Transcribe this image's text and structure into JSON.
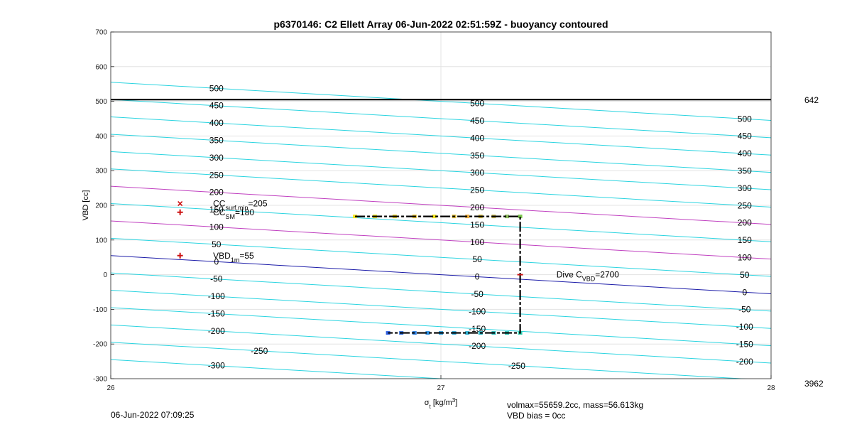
{
  "chart_data": {
    "type": "line",
    "title": "p6370146: C2 Ellett Array 06-Jun-2022 02:51:59Z - buoyancy contoured",
    "xlabel": "σ_t [kg/m^3]",
    "xlabel_main": "σ",
    "xlabel_sub": "t",
    "xlabel_rest": " [kg/m",
    "xlabel_sup": "3",
    "xlabel_end": "]",
    "ylabel": "VBD [cc]",
    "xlim": [
      26,
      28
    ],
    "ylim": [
      -300,
      700
    ],
    "xticks": [
      "26",
      "27",
      "28"
    ],
    "yticks": [
      "-300",
      "-200",
      "-100",
      "0",
      "100",
      "200",
      "300",
      "400",
      "500",
      "600",
      "700"
    ],
    "grid": true,
    "right_labels": {
      "top": "642",
      "bottom": "3962"
    },
    "max_vbd_line": 505,
    "buoyancy_contours": {
      "slope_per_sigma": -55,
      "levels": [
        -300,
        -250,
        -200,
        -150,
        -100,
        -50,
        0,
        50,
        100,
        150,
        200,
        250,
        300,
        350,
        400,
        450,
        500
      ],
      "highlight_levels": {
        "0": "#1c1ca8",
        "100": "#c040c0",
        "200": "#c040c0"
      },
      "default_color": "#2bd4e0",
      "labels": [
        {
          "text": "500",
          "x": 26.32,
          "y": 500
        },
        {
          "text": "450",
          "x": 26.32,
          "y": 450
        },
        {
          "text": "400",
          "x": 26.32,
          "y": 400
        },
        {
          "text": "350",
          "x": 26.32,
          "y": 350
        },
        {
          "text": "300",
          "x": 26.32,
          "y": 300
        },
        {
          "text": "250",
          "x": 26.32,
          "y": 250
        },
        {
          "text": "200",
          "x": 26.32,
          "y": 200
        },
        {
          "text": "150",
          "x": 26.32,
          "y": 150
        },
        {
          "text": "100",
          "x": 26.32,
          "y": 100
        },
        {
          "text": "50",
          "x": 26.32,
          "y": 50
        },
        {
          "text": "0",
          "x": 26.32,
          "y": 0
        },
        {
          "text": "-50",
          "x": 26.32,
          "y": -50
        },
        {
          "text": "-100",
          "x": 26.32,
          "y": -100
        },
        {
          "text": "-150",
          "x": 26.32,
          "y": -150
        },
        {
          "text": "-200",
          "x": 26.32,
          "y": -200
        },
        {
          "text": "-250",
          "x": 26.45,
          "y": -250
        },
        {
          "text": "-300",
          "x": 26.32,
          "y": -300
        },
        {
          "text": "500",
          "x": 27.11,
          "y": 500
        },
        {
          "text": "450",
          "x": 27.11,
          "y": 450
        },
        {
          "text": "400",
          "x": 27.11,
          "y": 400
        },
        {
          "text": "350",
          "x": 27.11,
          "y": 350
        },
        {
          "text": "300",
          "x": 27.11,
          "y": 300
        },
        {
          "text": "250",
          "x": 27.11,
          "y": 250
        },
        {
          "text": "200",
          "x": 27.11,
          "y": 200
        },
        {
          "text": "150",
          "x": 27.11,
          "y": 150
        },
        {
          "text": "100",
          "x": 27.11,
          "y": 100
        },
        {
          "text": "50",
          "x": 27.11,
          "y": 50
        },
        {
          "text": "0",
          "x": 27.11,
          "y": 0
        },
        {
          "text": "-50",
          "x": 27.11,
          "y": -50
        },
        {
          "text": "-100",
          "x": 27.11,
          "y": -100
        },
        {
          "text": "-150",
          "x": 27.11,
          "y": -150
        },
        {
          "text": "-200",
          "x": 27.11,
          "y": -200
        },
        {
          "text": "-250",
          "x": 27.23,
          "y": -250
        },
        {
          "text": "500",
          "x": 27.92,
          "y": 500
        },
        {
          "text": "450",
          "x": 27.92,
          "y": 450
        },
        {
          "text": "400",
          "x": 27.92,
          "y": 400
        },
        {
          "text": "350",
          "x": 27.92,
          "y": 350
        },
        {
          "text": "300",
          "x": 27.92,
          "y": 300
        },
        {
          "text": "250",
          "x": 27.92,
          "y": 250
        },
        {
          "text": "200",
          "x": 27.92,
          "y": 200
        },
        {
          "text": "150",
          "x": 27.92,
          "y": 150
        },
        {
          "text": "100",
          "x": 27.92,
          "y": 100
        },
        {
          "text": "50",
          "x": 27.92,
          "y": 50
        },
        {
          "text": "0",
          "x": 27.92,
          "y": 0
        },
        {
          "text": "-50",
          "x": 27.92,
          "y": -50
        },
        {
          "text": "-100",
          "x": 27.92,
          "y": -100
        },
        {
          "text": "-150",
          "x": 27.92,
          "y": -150
        },
        {
          "text": "-200",
          "x": 27.92,
          "y": -200
        }
      ]
    },
    "dive_trace": {
      "color": "#000000",
      "points": [
        [
          26.74,
          168
        ],
        [
          27.24,
          168
        ],
        [
          27.24,
          -168
        ],
        [
          26.84,
          -168
        ]
      ]
    },
    "dive_samples": {
      "top": {
        "y": 168,
        "x": [
          26.74,
          26.8,
          26.86,
          26.92,
          26.98,
          27.04,
          27.08,
          27.12,
          27.16,
          27.2,
          27.24
        ],
        "colors": [
          "#f5e61e",
          "#f5e61e",
          "#e8d02a",
          "#f0c830",
          "#f5e61e",
          "#e6c23a",
          "#f0b040",
          "#d8c040",
          "#c8b850",
          "#90c060",
          "#7dc850"
        ]
      },
      "bottom": {
        "y": -168,
        "x": [
          26.84,
          26.88,
          26.92,
          26.96,
          27.0,
          27.04,
          27.08,
          27.12,
          27.16,
          27.2,
          27.24
        ],
        "colors": [
          "#3060e0",
          "#3070e0",
          "#3080e0",
          "#3090e0",
          "#30a0e0",
          "#30a8d8",
          "#30b0d0",
          "#30b8c8",
          "#30c0c0",
          "#30c8b8",
          "#30d0b0"
        ]
      }
    },
    "markers": [
      {
        "kind": "x",
        "x": 26.21,
        "y": 205,
        "color": "#cc1111"
      },
      {
        "kind": "plus",
        "x": 26.21,
        "y": 180,
        "color": "#cc1111"
      },
      {
        "kind": "plus",
        "x": 26.21,
        "y": 55,
        "color": "#cc1111"
      },
      {
        "kind": "dash",
        "x": 27.24,
        "y": 0,
        "color": "#cc1111"
      }
    ],
    "annotations": [
      {
        "text": "CC",
        "sub": "surf,min",
        "rest": "=205",
        "x": 26.31,
        "y": 205
      },
      {
        "text": "CC",
        "sub": "SM",
        "rest": "=180",
        "x": 26.31,
        "y": 180
      },
      {
        "text": "VBD",
        "sub": "1m",
        "rest": "=55",
        "x": 26.31,
        "y": 55
      },
      {
        "text": "Dive C",
        "sub": "VBD",
        "rest": "=2700",
        "x": 27.35,
        "y": 0
      }
    ]
  },
  "footer": {
    "timestamp": "06-Jun-2022 07:09:25",
    "volmax_mass": "volmax=55659.2cc, mass=56.613kg",
    "vbd_bias": "VBD bias = 0cc"
  }
}
